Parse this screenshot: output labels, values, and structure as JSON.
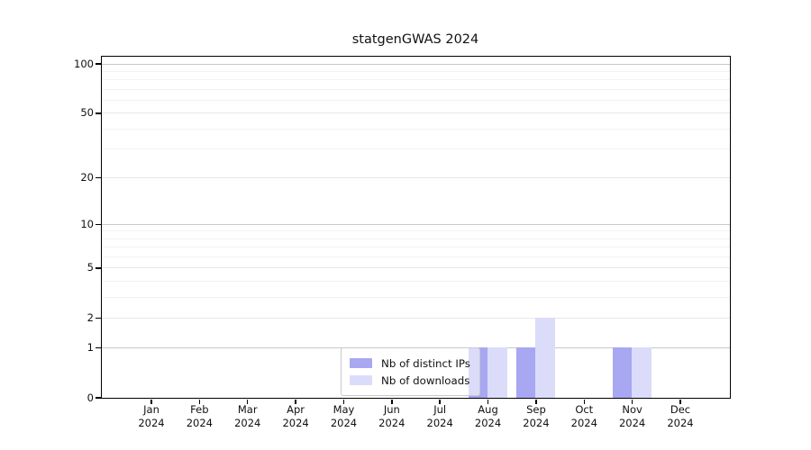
{
  "chart_data": {
    "type": "bar",
    "title": "statgenGWAS 2024",
    "categories": [
      "Jan",
      "Feb",
      "Mar",
      "Apr",
      "May",
      "Jun",
      "Jul",
      "Aug",
      "Sep",
      "Oct",
      "Nov",
      "Dec"
    ],
    "x_year": "2024",
    "series": [
      {
        "name": "Nb of distinct IPs",
        "color": "#a7a7f2",
        "values": [
          0,
          0,
          0,
          0,
          0,
          0,
          0,
          1,
          1,
          0,
          1,
          0
        ]
      },
      {
        "name": "Nb of downloads",
        "color": "#dbdcf9",
        "values": [
          0,
          0,
          0,
          0,
          0,
          0,
          0,
          1,
          2,
          0,
          1,
          0
        ]
      }
    ],
    "yscale": "log1p",
    "y_ticks": [
      0,
      1,
      2,
      5,
      10,
      20,
      50,
      100
    ],
    "y_minor_ticks": [
      3,
      4,
      6,
      7,
      8,
      9,
      30,
      40,
      60,
      70,
      80,
      90
    ],
    "ylim": [
      0,
      113
    ],
    "grid": "horizontal",
    "legend_position": "inside-bottom-center",
    "colors": {
      "decade_grid": "#c8c8c8",
      "major_grid": "#e7e7e7",
      "minor_grid": "#f2f2f2",
      "axis": "#000000",
      "text": "#111111"
    }
  }
}
